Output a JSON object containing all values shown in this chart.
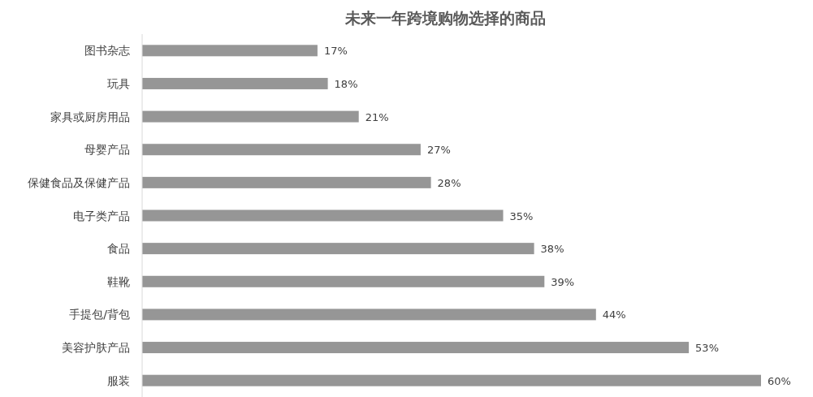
{
  "chart_data": {
    "type": "bar",
    "orientation": "horizontal",
    "title": "未来一年跨境购物选择的商品",
    "categories": [
      "图书杂志",
      "玩具",
      "家具或厨房用品",
      "母婴产品",
      "保健食品及保健产品",
      "电子类产品",
      "食品",
      "鞋靴",
      "手提包/背包",
      "美容护肤产品",
      "服装"
    ],
    "values": [
      17,
      18,
      21,
      27,
      28,
      35,
      38,
      39,
      44,
      53,
      60
    ],
    "value_labels": [
      "17%",
      "18%",
      "21%",
      "27%",
      "28%",
      "35%",
      "38%",
      "39%",
      "44%",
      "53%",
      "60%"
    ],
    "color": "#969696"
  }
}
